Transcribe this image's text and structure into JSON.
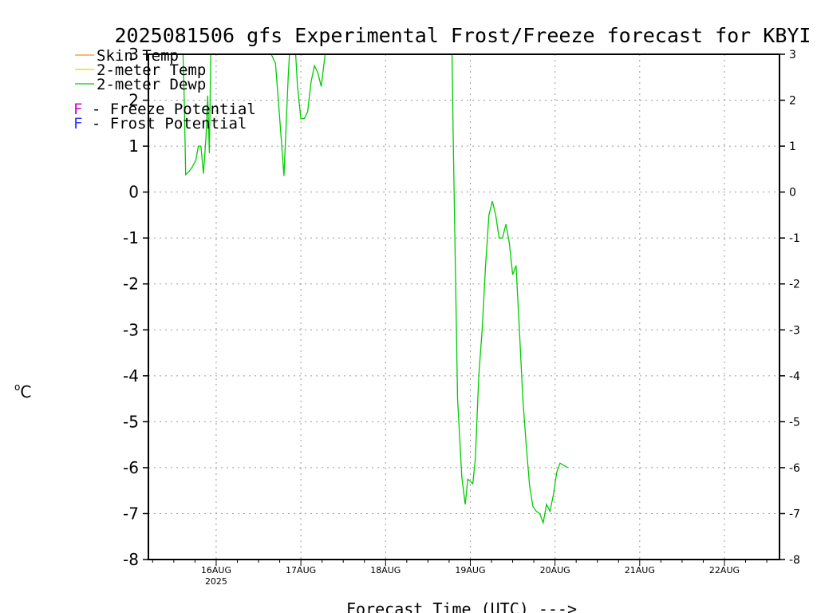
{
  "chart_data": {
    "type": "line",
    "title": "2025081506 gfs Experimental Frost/Freeze forecast for KBYI",
    "xlabel": "Forecast Time (UTC) --->",
    "ylabel_unit": "C",
    "ylim": [
      -8,
      3
    ],
    "yticks": [
      "-8",
      "-7",
      "-6",
      "-5",
      "-4",
      "-3",
      "-2",
      "-1",
      "0",
      "1",
      "2",
      "3"
    ],
    "x_days": [
      "16AUG",
      "17AUG",
      "18AUG",
      "19AUG",
      "20AUG",
      "21AUG",
      "22AUG"
    ],
    "x_year": "2025",
    "grid": true,
    "legend_position": "top-left",
    "legend": [
      {
        "label": "Skin Temp",
        "color": "#ff8c1a"
      },
      {
        "label": "2-meter Temp",
        "color": "#e6d200"
      },
      {
        "label": "2-meter Dewp",
        "color": "#00cc00"
      }
    ],
    "potential_keys": [
      {
        "letter": "F",
        "text": " - Freeze Potential",
        "color": "#cc00cc"
      },
      {
        "letter": "F",
        "text": " - Frost Potential",
        "color": "#3333ff"
      }
    ],
    "series": [
      {
        "name": "2-meter Dewp",
        "color": "#00cc00",
        "points": [
          [
            15.6,
            3.6
          ],
          [
            15.625,
            1.9
          ],
          [
            15.64,
            0.38
          ],
          [
            15.68,
            0.45
          ],
          [
            15.72,
            0.55
          ],
          [
            15.76,
            0.7
          ],
          [
            15.79,
            1.0
          ],
          [
            15.82,
            1.0
          ],
          [
            15.85,
            0.4
          ],
          [
            15.88,
            1.2
          ],
          [
            15.9,
            2.1
          ],
          [
            15.92,
            0.85
          ],
          [
            15.94,
            3.5
          ],
          [
            16.6,
            3.2
          ],
          [
            16.65,
            3.0
          ],
          [
            16.7,
            2.8
          ],
          [
            16.75,
            1.6
          ],
          [
            16.8,
            0.35
          ],
          [
            16.85,
            2.5
          ],
          [
            16.88,
            3.5
          ],
          [
            16.92,
            3.6
          ],
          [
            16.96,
            2.3
          ],
          [
            17.0,
            1.6
          ],
          [
            17.04,
            1.6
          ],
          [
            17.08,
            1.75
          ],
          [
            17.12,
            2.4
          ],
          [
            17.16,
            2.75
          ],
          [
            17.2,
            2.6
          ],
          [
            17.24,
            2.3
          ],
          [
            17.28,
            2.9
          ],
          [
            17.32,
            3.5
          ],
          [
            18.78,
            3.6
          ],
          [
            18.8,
            1.0
          ],
          [
            18.85,
            -4.5
          ],
          [
            18.9,
            -6.2
          ],
          [
            18.94,
            -6.8
          ],
          [
            18.97,
            -6.25
          ],
          [
            19.0,
            -6.3
          ],
          [
            19.03,
            -6.35
          ],
          [
            19.06,
            -5.8
          ],
          [
            19.1,
            -4.0
          ],
          [
            19.14,
            -3.0
          ],
          [
            19.18,
            -1.6
          ],
          [
            19.22,
            -0.5
          ],
          [
            19.26,
            -0.2
          ],
          [
            19.3,
            -0.5
          ],
          [
            19.34,
            -1.0
          ],
          [
            19.38,
            -1.0
          ],
          [
            19.42,
            -0.7
          ],
          [
            19.46,
            -1.1
          ],
          [
            19.5,
            -1.8
          ],
          [
            19.54,
            -1.6
          ],
          [
            19.58,
            -3.0
          ],
          [
            19.62,
            -4.5
          ],
          [
            19.66,
            -5.5
          ],
          [
            19.7,
            -6.4
          ],
          [
            19.74,
            -6.85
          ],
          [
            19.78,
            -6.95
          ],
          [
            19.82,
            -7.0
          ],
          [
            19.86,
            -7.2
          ],
          [
            19.9,
            -6.8
          ],
          [
            19.94,
            -6.95
          ],
          [
            19.98,
            -6.6
          ],
          [
            20.02,
            -6.1
          ],
          [
            20.06,
            -5.9
          ],
          [
            20.1,
            -5.95
          ],
          [
            20.15,
            -6.0
          ]
        ]
      }
    ]
  }
}
